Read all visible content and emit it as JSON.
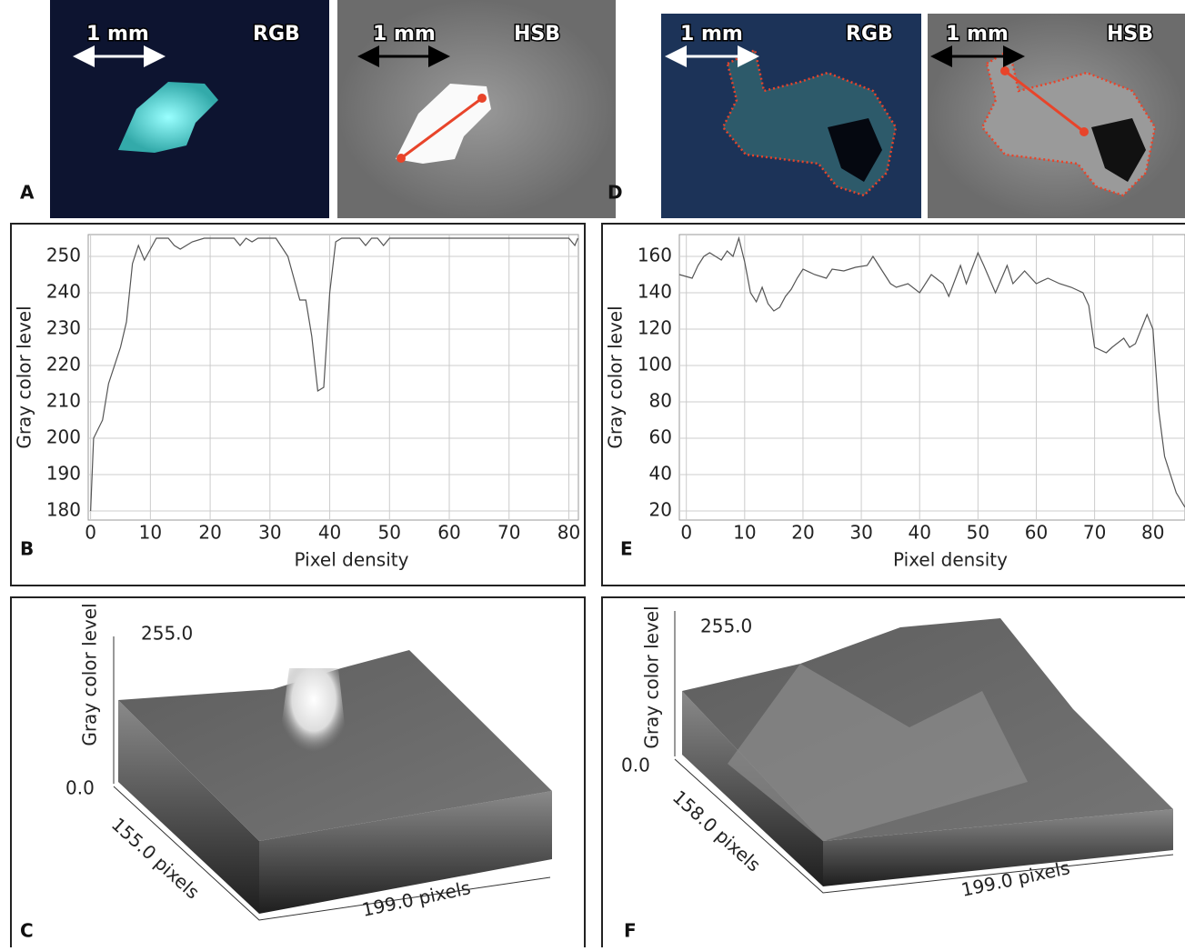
{
  "images": [
    {
      "panel": "A",
      "items": [
        {
          "scale": "1 mm",
          "mode": "RGB"
        },
        {
          "scale": "1 mm",
          "mode": "HSB"
        }
      ]
    },
    {
      "panel": "D",
      "items": [
        {
          "scale": "1 mm",
          "mode": "RGB"
        },
        {
          "scale": "1 mm",
          "mode": "HSB"
        }
      ]
    }
  ],
  "chart_data": [
    {
      "type": "line",
      "panel": "B",
      "x_label": "Pixel density",
      "y_label": "Gray color level",
      "xlim": [
        -0.4,
        81.6
      ],
      "ylim": [
        177.5,
        256
      ],
      "xticks": [
        0,
        10,
        20,
        30,
        40,
        50,
        60,
        70,
        80
      ],
      "yticks": [
        180,
        190,
        200,
        210,
        220,
        230,
        240,
        250
      ],
      "grid": true,
      "series": [
        {
          "color": "#555555",
          "x": [
            0,
            0.5,
            2,
            3,
            5,
            6,
            7,
            8,
            9,
            10,
            11,
            13,
            14,
            15,
            17,
            19,
            24,
            25,
            26,
            27,
            28,
            31,
            33,
            35,
            36,
            37,
            38,
            39,
            40,
            41,
            42,
            45,
            46,
            47,
            48,
            49,
            50,
            80,
            81,
            81.5
          ],
          "values": [
            180,
            200,
            205,
            215,
            225,
            232,
            248,
            253,
            249,
            252,
            255,
            255,
            253,
            252,
            254,
            255,
            255,
            253,
            255,
            254,
            255,
            255,
            250,
            238,
            238,
            228,
            213,
            214,
            240,
            254,
            255,
            255,
            253,
            255,
            255,
            253,
            255,
            255,
            253,
            255
          ]
        }
      ]
    },
    {
      "type": "line",
      "panel": "E",
      "x_label": "Pixel density",
      "y_label": "Gray color level",
      "xlim": [
        -1.2,
        85.5
      ],
      "ylim": [
        15,
        172
      ],
      "xticks": [
        0,
        10,
        20,
        30,
        40,
        50,
        60,
        70,
        80
      ],
      "yticks": [
        20,
        40,
        60,
        80,
        100,
        120,
        140,
        160
      ],
      "grid": true,
      "series": [
        {
          "color": "#555555",
          "x": [
            -1.2,
            1,
            2,
            3,
            4,
            5,
            6,
            7,
            8,
            9,
            10,
            11,
            12,
            13,
            14,
            15,
            16,
            17,
            18,
            19,
            20,
            22,
            24,
            25,
            27,
            29,
            31,
            32,
            33,
            35,
            36,
            38,
            40,
            42,
            44,
            45,
            47,
            48,
            50,
            51,
            53,
            55,
            56,
            58,
            60,
            62,
            64,
            66,
            68,
            69,
            70,
            72,
            73,
            75,
            76,
            77,
            79,
            80,
            81,
            82,
            84,
            85.5
          ],
          "values": [
            150,
            148,
            155,
            160,
            162,
            160,
            158,
            163,
            160,
            170,
            157,
            140,
            135,
            143,
            134,
            130,
            132,
            138,
            142,
            148,
            153,
            150,
            148,
            153,
            152,
            154,
            155,
            160,
            155,
            145,
            143,
            145,
            140,
            150,
            145,
            138,
            155,
            145,
            162,
            155,
            140,
            155,
            145,
            152,
            145,
            148,
            145,
            143,
            140,
            133,
            110,
            107,
            110,
            115,
            110,
            112,
            128,
            120,
            75,
            50,
            30,
            22
          ]
        }
      ]
    }
  ],
  "surfaces": [
    {
      "panel": "C",
      "z_label": "Gray color level",
      "z_max": "255.0",
      "z_min": "0.0",
      "depth": "155.0 pixels",
      "width": "199.0 pixels"
    },
    {
      "panel": "F",
      "z_label": "Gray color level",
      "z_max": "255.0",
      "z_min": "0.0",
      "depth": "158.0 pixels",
      "width": "199.0 pixels"
    }
  ]
}
